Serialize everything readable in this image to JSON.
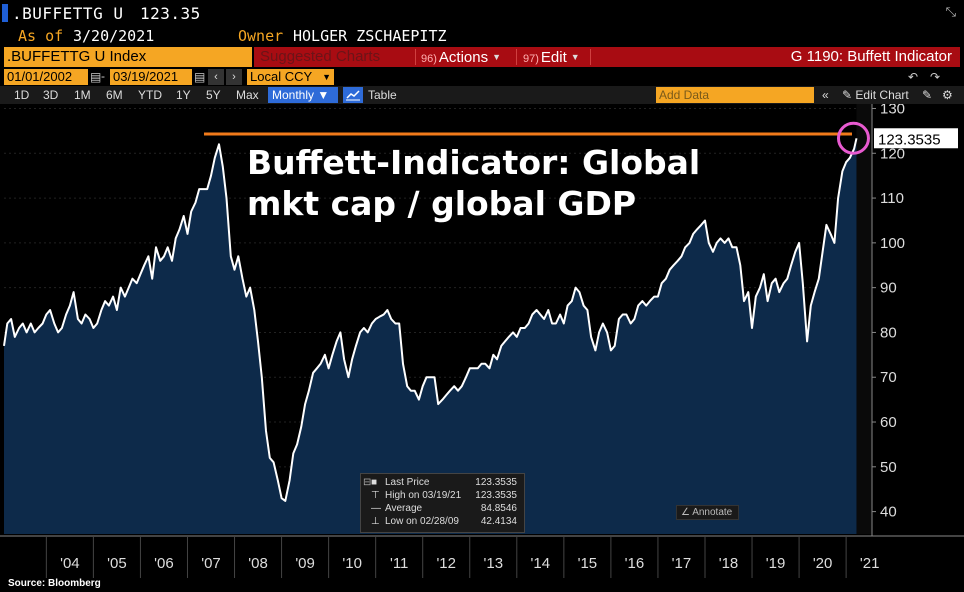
{
  "header": {
    "ticker": ".BUFFETTG U",
    "price": "123.35",
    "asof_label": "As of",
    "asof_value": "3/20/2021",
    "owner_label": "Owner",
    "owner_value": "HOLGER ZSCHAEPITZ"
  },
  "toolbar": {
    "index_label": ".BUFFETTG U Index",
    "suggested_label": "Suggested Charts",
    "actions_num": "96)",
    "actions_label": "Actions",
    "edit_num": "97)",
    "edit_label": "Edit",
    "function_title": "G 1190: Buffett Indicator",
    "start_date": "01/01/2002",
    "end_date": "03/19/2021",
    "currency": "Local CCY",
    "periods": [
      "1D",
      "3D",
      "1M",
      "6M",
      "YTD",
      "1Y",
      "5Y",
      "Max"
    ],
    "frequency": "Monthly",
    "table_label": "Table",
    "add_data_placeholder": "Add Data",
    "edit_chart_label": "Edit Chart"
  },
  "chart_data": {
    "type": "area",
    "title": "Buffett-Indicator: Global mkt cap / global GDP",
    "title_lines": [
      "Buffett-Indicator: Global",
      "mkt cap / global GDP"
    ],
    "y_ticks": [
      40,
      50,
      60,
      70,
      80,
      90,
      100,
      110,
      120,
      130
    ],
    "ylim": [
      35,
      131
    ],
    "xlim": [
      2003.1,
      2021.55
    ],
    "x_tick_labels": [
      "'04",
      "'05",
      "'06",
      "'07",
      "'08",
      "'09",
      "'10",
      "'11",
      "'12",
      "'13",
      "'14",
      "'15",
      "'16",
      "'17",
      "'18",
      "'19",
      "'20",
      "'21"
    ],
    "x_tick_positions": [
      2004,
      2005,
      2006,
      2007,
      2008,
      2009,
      2010,
      2011,
      2012,
      2013,
      2014,
      2015,
      2016,
      2017,
      2018,
      2019,
      2020,
      2021
    ],
    "last_value_label": "123.3535",
    "reference_line": 124.3,
    "series": [
      {
        "points": [
          [
            2003.1,
            77
          ],
          [
            2003.17,
            82
          ],
          [
            2003.25,
            83
          ],
          [
            2003.33,
            79
          ],
          [
            2003.42,
            81
          ],
          [
            2003.5,
            82
          ],
          [
            2003.58,
            80
          ],
          [
            2003.67,
            82
          ],
          [
            2003.75,
            80
          ],
          [
            2003.83,
            81
          ],
          [
            2003.92,
            82
          ],
          [
            2004.0,
            84
          ],
          [
            2004.08,
            85
          ],
          [
            2004.17,
            82
          ],
          [
            2004.25,
            80
          ],
          [
            2004.33,
            81
          ],
          [
            2004.42,
            84
          ],
          [
            2004.5,
            86
          ],
          [
            2004.58,
            89
          ],
          [
            2004.67,
            83
          ],
          [
            2004.75,
            82
          ],
          [
            2004.83,
            84
          ],
          [
            2004.92,
            83
          ],
          [
            2005.0,
            81
          ],
          [
            2005.08,
            82
          ],
          [
            2005.17,
            85
          ],
          [
            2005.25,
            87
          ],
          [
            2005.33,
            86
          ],
          [
            2005.42,
            88
          ],
          [
            2005.5,
            85
          ],
          [
            2005.58,
            90
          ],
          [
            2005.67,
            88
          ],
          [
            2005.75,
            90
          ],
          [
            2005.83,
            92
          ],
          [
            2005.92,
            91
          ],
          [
            2006.0,
            93
          ],
          [
            2006.08,
            95
          ],
          [
            2006.17,
            97
          ],
          [
            2006.25,
            92
          ],
          [
            2006.33,
            99
          ],
          [
            2006.42,
            96
          ],
          [
            2006.5,
            97
          ],
          [
            2006.58,
            99
          ],
          [
            2006.67,
            96
          ],
          [
            2006.75,
            101
          ],
          [
            2006.83,
            103
          ],
          [
            2006.92,
            106
          ],
          [
            2007.0,
            102
          ],
          [
            2007.08,
            107
          ],
          [
            2007.17,
            109
          ],
          [
            2007.25,
            112
          ],
          [
            2007.33,
            112
          ],
          [
            2007.42,
            112
          ],
          [
            2007.5,
            115
          ],
          [
            2007.58,
            119
          ],
          [
            2007.67,
            122
          ],
          [
            2007.75,
            117
          ],
          [
            2007.83,
            110
          ],
          [
            2007.92,
            97
          ],
          [
            2008.0,
            94
          ],
          [
            2008.08,
            97
          ],
          [
            2008.17,
            92
          ],
          [
            2008.25,
            88
          ],
          [
            2008.33,
            90
          ],
          [
            2008.42,
            85
          ],
          [
            2008.5,
            78
          ],
          [
            2008.58,
            70
          ],
          [
            2008.67,
            58
          ],
          [
            2008.75,
            52
          ],
          [
            2008.83,
            51
          ],
          [
            2008.92,
            47
          ],
          [
            2009.0,
            43
          ],
          [
            2009.08,
            42.4
          ],
          [
            2009.17,
            47
          ],
          [
            2009.25,
            53
          ],
          [
            2009.33,
            55
          ],
          [
            2009.42,
            59
          ],
          [
            2009.5,
            64
          ],
          [
            2009.58,
            67
          ],
          [
            2009.67,
            71
          ],
          [
            2009.75,
            72
          ],
          [
            2009.83,
            73
          ],
          [
            2009.92,
            75
          ],
          [
            2010.0,
            72
          ],
          [
            2010.08,
            75
          ],
          [
            2010.17,
            78
          ],
          [
            2010.25,
            80
          ],
          [
            2010.33,
            74
          ],
          [
            2010.42,
            70
          ],
          [
            2010.5,
            74
          ],
          [
            2010.58,
            77
          ],
          [
            2010.67,
            80
          ],
          [
            2010.75,
            81
          ],
          [
            2010.83,
            80
          ],
          [
            2010.92,
            82
          ],
          [
            2011.0,
            83
          ],
          [
            2011.08,
            83.5
          ],
          [
            2011.17,
            84
          ],
          [
            2011.25,
            85
          ],
          [
            2011.33,
            83
          ],
          [
            2011.42,
            82
          ],
          [
            2011.5,
            82
          ],
          [
            2011.58,
            73
          ],
          [
            2011.67,
            68
          ],
          [
            2011.75,
            67
          ],
          [
            2011.83,
            67
          ],
          [
            2011.92,
            65
          ],
          [
            2012.0,
            68
          ],
          [
            2012.08,
            70
          ],
          [
            2012.17,
            70
          ],
          [
            2012.25,
            70
          ],
          [
            2012.33,
            64
          ],
          [
            2012.42,
            65
          ],
          [
            2012.5,
            66
          ],
          [
            2012.58,
            67
          ],
          [
            2012.67,
            68
          ],
          [
            2012.75,
            67
          ],
          [
            2012.83,
            68
          ],
          [
            2012.92,
            70
          ],
          [
            2013.0,
            72
          ],
          [
            2013.08,
            72
          ],
          [
            2013.17,
            72
          ],
          [
            2013.25,
            73
          ],
          [
            2013.33,
            73
          ],
          [
            2013.42,
            72
          ],
          [
            2013.5,
            75
          ],
          [
            2013.58,
            74
          ],
          [
            2013.67,
            77
          ],
          [
            2013.75,
            78
          ],
          [
            2013.83,
            79
          ],
          [
            2013.92,
            80
          ],
          [
            2014.0,
            79
          ],
          [
            2014.08,
            81
          ],
          [
            2014.17,
            81
          ],
          [
            2014.25,
            82
          ],
          [
            2014.33,
            84
          ],
          [
            2014.42,
            85
          ],
          [
            2014.5,
            84
          ],
          [
            2014.58,
            83
          ],
          [
            2014.67,
            85
          ],
          [
            2014.75,
            82
          ],
          [
            2014.83,
            82
          ],
          [
            2014.92,
            84
          ],
          [
            2015.0,
            82
          ],
          [
            2015.08,
            86
          ],
          [
            2015.17,
            87
          ],
          [
            2015.25,
            90
          ],
          [
            2015.33,
            89
          ],
          [
            2015.42,
            86
          ],
          [
            2015.5,
            85
          ],
          [
            2015.58,
            79
          ],
          [
            2015.67,
            76
          ],
          [
            2015.75,
            80
          ],
          [
            2015.83,
            82
          ],
          [
            2015.92,
            80
          ],
          [
            2016.0,
            76
          ],
          [
            2016.08,
            77
          ],
          [
            2016.17,
            83
          ],
          [
            2016.25,
            84
          ],
          [
            2016.33,
            84
          ],
          [
            2016.42,
            82
          ],
          [
            2016.5,
            83
          ],
          [
            2016.58,
            86
          ],
          [
            2016.67,
            87
          ],
          [
            2016.75,
            86
          ],
          [
            2016.83,
            87
          ],
          [
            2016.92,
            88
          ],
          [
            2017.0,
            88
          ],
          [
            2017.08,
            91
          ],
          [
            2017.17,
            92
          ],
          [
            2017.25,
            94
          ],
          [
            2017.33,
            95
          ],
          [
            2017.42,
            96
          ],
          [
            2017.5,
            97
          ],
          [
            2017.58,
            99
          ],
          [
            2017.67,
            100
          ],
          [
            2017.75,
            102
          ],
          [
            2017.83,
            103
          ],
          [
            2017.92,
            104
          ],
          [
            2018.0,
            105
          ],
          [
            2018.08,
            100
          ],
          [
            2018.17,
            98
          ],
          [
            2018.25,
            100
          ],
          [
            2018.33,
            101
          ],
          [
            2018.42,
            100
          ],
          [
            2018.5,
            101
          ],
          [
            2018.58,
            99
          ],
          [
            2018.67,
            99
          ],
          [
            2018.75,
            95
          ],
          [
            2018.83,
            87
          ],
          [
            2018.92,
            89
          ],
          [
            2019.0,
            81
          ],
          [
            2019.08,
            88
          ],
          [
            2019.17,
            90
          ],
          [
            2019.25,
            93
          ],
          [
            2019.33,
            87
          ],
          [
            2019.42,
            91
          ],
          [
            2019.5,
            92
          ],
          [
            2019.58,
            89
          ],
          [
            2019.67,
            91
          ],
          [
            2019.75,
            92
          ],
          [
            2019.83,
            95
          ],
          [
            2019.92,
            98
          ],
          [
            2020.0,
            100
          ],
          [
            2020.08,
            91
          ],
          [
            2020.17,
            78
          ],
          [
            2020.25,
            86
          ],
          [
            2020.33,
            89
          ],
          [
            2020.42,
            92
          ],
          [
            2020.5,
            98
          ],
          [
            2020.58,
            104
          ],
          [
            2020.67,
            102
          ],
          [
            2020.75,
            100
          ],
          [
            2020.83,
            110
          ],
          [
            2020.92,
            116
          ],
          [
            2021.0,
            118
          ],
          [
            2021.08,
            119
          ],
          [
            2021.17,
            121
          ],
          [
            2021.22,
            123.35
          ]
        ]
      }
    ]
  },
  "legend": {
    "last_price_label": "Last Price",
    "last_price_value": "123.3535",
    "high_label": "High on 03/19/21",
    "high_value": "123.3535",
    "average_label": "Average",
    "average_value": "84.8546",
    "low_label": "Low on 02/28/09",
    "low_value": "42.4134"
  },
  "annotate_label": "Annotate",
  "source": "Source: Bloomberg",
  "colors": {
    "orange": "#f5a623",
    "reference_line": "#f07a1a",
    "circle": "#e85ad0",
    "area_fill": "#0d2a4a",
    "line": "#ffffff",
    "red_bar": "#a80c12",
    "toolbar_blue": "#2e6bd8"
  }
}
